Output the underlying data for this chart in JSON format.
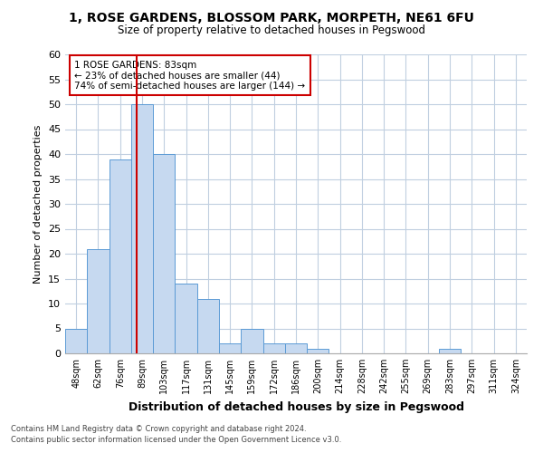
{
  "title": "1, ROSE GARDENS, BLOSSOM PARK, MORPETH, NE61 6FU",
  "subtitle": "Size of property relative to detached houses in Pegswood",
  "xlabel": "Distribution of detached houses by size in Pegswood",
  "ylabel": "Number of detached properties",
  "bin_labels": [
    "48sqm",
    "62sqm",
    "76sqm",
    "89sqm",
    "103sqm",
    "117sqm",
    "131sqm",
    "145sqm",
    "159sqm",
    "172sqm",
    "186sqm",
    "200sqm",
    "214sqm",
    "228sqm",
    "242sqm",
    "255sqm",
    "269sqm",
    "283sqm",
    "297sqm",
    "311sqm",
    "324sqm"
  ],
  "bar_values": [
    5,
    21,
    39,
    50,
    40,
    14,
    11,
    2,
    5,
    2,
    2,
    1,
    0,
    0,
    0,
    0,
    0,
    1,
    0,
    0,
    0
  ],
  "bar_color": "#c6d9f0",
  "bar_edge_color": "#5b9bd5",
  "vline_x": 2.77,
  "vline_color": "#cc0000",
  "annotation_title": "1 ROSE GARDENS: 83sqm",
  "annotation_line1": "← 23% of detached houses are smaller (44)",
  "annotation_line2": "74% of semi-detached houses are larger (144) →",
  "annotation_box_color": "#cc0000",
  "ylim": [
    0,
    60
  ],
  "yticks": [
    0,
    5,
    10,
    15,
    20,
    25,
    30,
    35,
    40,
    45,
    50,
    55,
    60
  ],
  "footnote1": "Contains HM Land Registry data © Crown copyright and database right 2024.",
  "footnote2": "Contains public sector information licensed under the Open Government Licence v3.0.",
  "background_color": "#ffffff",
  "grid_color": "#c0cfe0"
}
